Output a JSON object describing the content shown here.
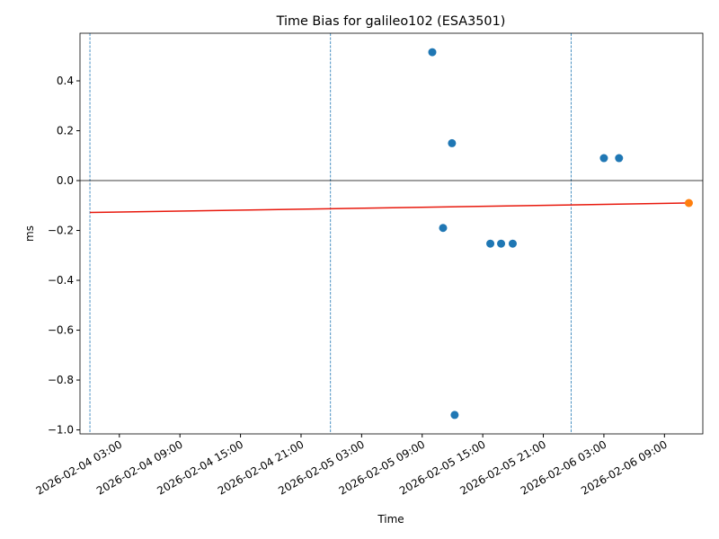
{
  "chart_data": {
    "type": "scatter",
    "title": "Time Bias for galileo102 (ESA3501)",
    "x_label": "Time",
    "y_label": "ms",
    "xlim": [
      "2026-02-03 23:06",
      "2026-02-06 12:48"
    ],
    "ylim": [
      -1.016,
      0.591
    ],
    "xticks": [
      "2026-02-04 03:00",
      "2026-02-04 09:00",
      "2026-02-04 15:00",
      "2026-02-04 21:00",
      "2026-02-05 03:00",
      "2026-02-05 09:00",
      "2026-02-05 15:00",
      "2026-02-05 21:00",
      "2026-02-06 03:00",
      "2026-02-06 09:00"
    ],
    "yticks": [
      {
        "value": -1.0,
        "label": "−1.0"
      },
      {
        "value": -0.8,
        "label": "−0.8"
      },
      {
        "value": -0.6,
        "label": "−0.6"
      },
      {
        "value": -0.4,
        "label": "−0.4"
      },
      {
        "value": -0.2,
        "label": "−0.2"
      },
      {
        "value": 0.0,
        "label": "0.0"
      },
      0.2,
      0.4
    ],
    "zero_line": true,
    "vlines": {
      "color": "#1f77b4",
      "x": [
        "2026-02-04 00:05",
        "2026-02-04 23:55",
        "2026-02-05 23:45"
      ]
    },
    "series": [
      {
        "color": "#1f77b4",
        "x": [
          "2026-02-05 10:00",
          "2026-02-05 11:57",
          "2026-02-05 11:04",
          "2026-02-05 12:13",
          "2026-02-05 15:45",
          "2026-02-05 16:49",
          "2026-02-05 17:58",
          "2026-02-06 03:00",
          "2026-02-06 04:30"
        ],
        "values": [
          0.515,
          0.15,
          -0.19,
          -0.94,
          -0.253,
          -0.253,
          -0.253,
          0.09,
          0.09
        ]
      },
      {
        "color": "#ff7f0e",
        "x": [
          "2026-02-06 11:25"
        ],
        "values": [
          -0.09
        ]
      }
    ],
    "trend": {
      "color": "#e8180c",
      "x": [
        "2026-02-04 00:05",
        "2026-02-06 11:25"
      ],
      "values": [
        -0.128,
        -0.09
      ]
    }
  }
}
